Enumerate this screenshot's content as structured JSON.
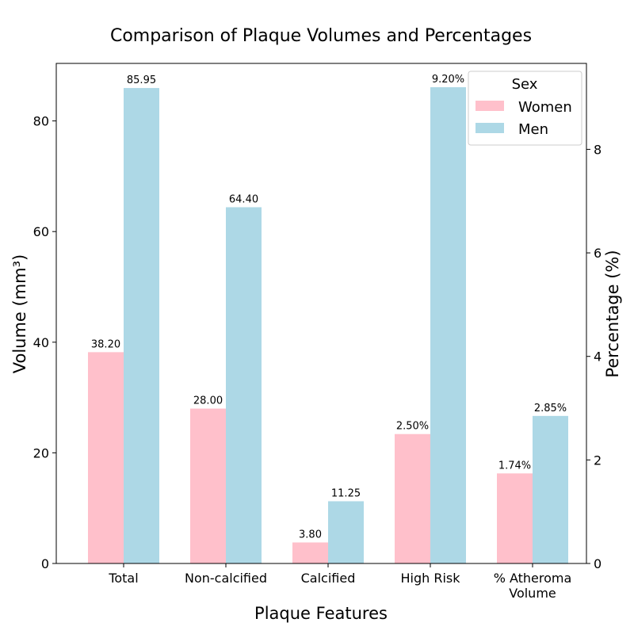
{
  "chart_data": {
    "type": "bar",
    "title": "Comparison of Plaque Volumes and Percentages",
    "xlabel": "Plaque Features",
    "ylabel_left": "Volume (mm³)",
    "ylabel_right": "Percentage (%)",
    "categories": [
      "Total",
      "Non-calcified",
      "Calcified",
      "High Risk",
      "% Atheroma\nVolume"
    ],
    "axis_assignment": [
      "left",
      "left",
      "left",
      "right",
      "right"
    ],
    "ylim_left": [
      0,
      90.4
    ],
    "ylim_right": [
      0,
      9.66
    ],
    "yticks_left": [
      0,
      20,
      40,
      60,
      80
    ],
    "yticks_right": [
      0,
      2,
      4,
      6,
      8
    ],
    "series": [
      {
        "name": "Women",
        "color": "#ffc0cb",
        "values": [
          38.2,
          28.0,
          3.8,
          2.5,
          1.74
        ],
        "labels": [
          "38.20",
          "28.00",
          "3.80",
          "2.50%",
          "1.74%"
        ]
      },
      {
        "name": "Men",
        "color": "#add8e6",
        "values": [
          85.95,
          64.4,
          11.25,
          9.2,
          2.85
        ],
        "labels": [
          "85.95",
          "64.40",
          "11.25",
          "9.20%",
          "2.85%"
        ]
      }
    ],
    "legend": {
      "title": "Sex",
      "placement": "top-right"
    },
    "grid": false
  }
}
